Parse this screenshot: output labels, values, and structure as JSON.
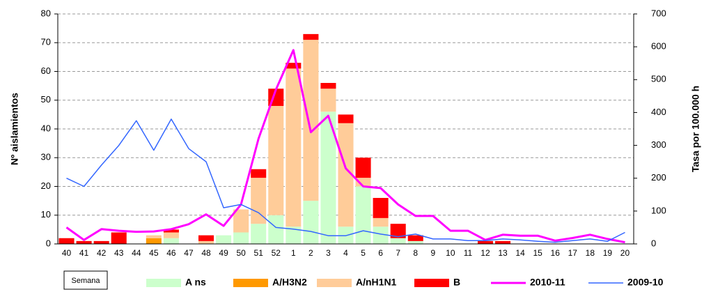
{
  "chart_data": {
    "type": "bar",
    "x_label": "Semana",
    "y_label": "Nº aislamientos",
    "y2_label": "Tasa por 100.000 h",
    "categories": [
      "40",
      "41",
      "42",
      "43",
      "44",
      "45",
      "46",
      "47",
      "48",
      "49",
      "50",
      "51",
      "52",
      "1",
      "2",
      "3",
      "4",
      "5",
      "6",
      "7",
      "8",
      "9",
      "10",
      "11",
      "12",
      "13",
      "14",
      "15",
      "16",
      "17",
      "18",
      "19",
      "20"
    ],
    "stacked": true,
    "grid": true,
    "ylim": [
      0,
      80
    ],
    "yticks": [
      0,
      10,
      20,
      30,
      40,
      50,
      60,
      70,
      80
    ],
    "y2lim": [
      0,
      700
    ],
    "y2ticks": [
      0,
      100,
      200,
      300,
      400,
      500,
      600,
      700
    ],
    "series": [
      {
        "name": "A ns",
        "color": "#ccffcc",
        "values": [
          0,
          0,
          0,
          0,
          0,
          0,
          2,
          0,
          0,
          3,
          4,
          7,
          10,
          6,
          15,
          46,
          6,
          20,
          6,
          2,
          1,
          0,
          0,
          0,
          0,
          0,
          0,
          0,
          0,
          0,
          0,
          0,
          0
        ]
      },
      {
        "name": "A/H3N2",
        "color": "#ff9900",
        "values": [
          0,
          0,
          0,
          0,
          0,
          2,
          0,
          0,
          0,
          0,
          0,
          0,
          0,
          0,
          0,
          0,
          0,
          0,
          0,
          0,
          0,
          0,
          0,
          0,
          0,
          0,
          0,
          0,
          0,
          0,
          0,
          0,
          0
        ]
      },
      {
        "name": "A/nH1N1",
        "color": "#ffcc99",
        "values": [
          0,
          0,
          0,
          0,
          0,
          1,
          2,
          0,
          1,
          0,
          8,
          16,
          38,
          55,
          56,
          8,
          36,
          3,
          3,
          0,
          0,
          0,
          0,
          0,
          0,
          0,
          0,
          0,
          0,
          0,
          0,
          0,
          0
        ]
      },
      {
        "name": "B",
        "color": "#ff0000",
        "values": [
          2,
          1,
          1,
          4,
          0,
          0,
          1,
          0,
          2,
          0,
          0,
          3,
          6,
          2,
          2,
          2,
          3,
          7,
          7,
          5,
          2,
          0,
          0,
          0,
          1,
          1,
          0,
          0,
          0,
          0,
          0,
          0,
          0
        ]
      },
      {
        "name": "2010-11",
        "type": "line",
        "axis": "y2",
        "color": "#ff00ff",
        "values": [
          50,
          12,
          45,
          40,
          37,
          38,
          45,
          60,
          90,
          55,
          120,
          320,
          470,
          590,
          340,
          390,
          230,
          175,
          170,
          120,
          85,
          85,
          40,
          40,
          12,
          28,
          25,
          25,
          10,
          18,
          28,
          15,
          5
        ]
      },
      {
        "name": "2009-10",
        "type": "line",
        "axis": "y2",
        "color": "#3366ff",
        "values": [
          200,
          175,
          240,
          300,
          375,
          285,
          380,
          290,
          250,
          110,
          120,
          95,
          50,
          45,
          38,
          25,
          25,
          40,
          30,
          22,
          30,
          15,
          15,
          10,
          10,
          15,
          12,
          8,
          5,
          10,
          15,
          8,
          35
        ]
      }
    ]
  }
}
